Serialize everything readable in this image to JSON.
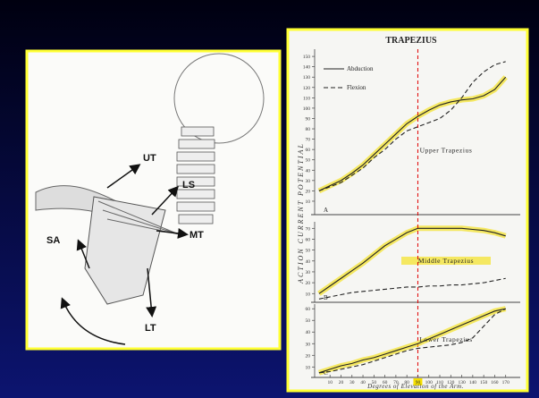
{
  "anatomy": {
    "labels": [
      "UT",
      "LS",
      "MT",
      "SA",
      "LT"
    ]
  },
  "chart_data": [
    {
      "type": "line",
      "title": "TRAPEZIUS",
      "ylabel": "ACTION CURRENT POTENTIAL",
      "panel": "A",
      "annotation": "Upper Trapezius",
      "x": [
        0,
        10,
        20,
        30,
        40,
        50,
        60,
        70,
        80,
        90,
        100,
        110,
        120,
        130,
        140,
        150,
        160,
        170
      ],
      "series": [
        {
          "name": "Abduction",
          "color": "#222222",
          "style": "solid",
          "values": [
            20,
            25,
            30,
            37,
            45,
            55,
            65,
            75,
            85,
            92,
            98,
            103,
            106,
            108,
            109,
            112,
            118,
            130
          ]
        },
        {
          "name": "Flexion",
          "color": "#222222",
          "style": "dashed",
          "values": [
            20,
            24,
            28,
            35,
            42,
            52,
            60,
            70,
            78,
            82,
            86,
            90,
            98,
            110,
            125,
            135,
            142,
            145
          ]
        }
      ],
      "xlim": [
        -4,
        180
      ],
      "ylim": [
        -3,
        157
      ],
      "yticks": [
        10,
        20,
        30,
        40,
        50,
        60,
        70,
        80,
        90,
        100,
        110,
        120,
        130,
        140,
        150
      ],
      "legend": "top-left"
    },
    {
      "type": "line",
      "panel": "B",
      "annotation": "Middle Trapezius",
      "x": [
        0,
        10,
        20,
        30,
        40,
        50,
        60,
        70,
        80,
        90,
        100,
        110,
        120,
        130,
        140,
        150,
        160,
        170
      ],
      "series": [
        {
          "color": "#222222",
          "style": "solid",
          "values": [
            10,
            17,
            24,
            31,
            38,
            46,
            54,
            60,
            66,
            70,
            70,
            70,
            70,
            70,
            69,
            68,
            66,
            63
          ]
        },
        {
          "color": "#222222",
          "style": "dashed",
          "values": [
            5,
            7,
            9,
            11,
            12,
            13,
            14,
            15,
            16,
            16,
            17,
            17,
            18,
            18,
            19,
            20,
            22,
            24
          ]
        }
      ],
      "xlim": [
        -4,
        180
      ],
      "ylim": [
        2,
        76
      ],
      "yticks": [
        10,
        20,
        30,
        40,
        50,
        60,
        70
      ]
    },
    {
      "type": "line",
      "panel": "C",
      "annotation": "Lower Trapezius",
      "xlabel": "Degrees of Elevation of the Arm.",
      "x": [
        0,
        10,
        20,
        30,
        40,
        50,
        60,
        70,
        80,
        90,
        100,
        110,
        120,
        130,
        140,
        150,
        160,
        170
      ],
      "series": [
        {
          "color": "#222222",
          "style": "solid",
          "values": [
            5,
            8,
            11,
            13,
            16,
            18,
            21,
            24,
            27,
            30,
            34,
            38,
            42,
            46,
            50,
            54,
            58,
            60
          ]
        },
        {
          "color": "#222222",
          "style": "dashed",
          "values": [
            5,
            6,
            8,
            10,
            12,
            15,
            18,
            21,
            24,
            26,
            27,
            28,
            29,
            31,
            35,
            45,
            55,
            60
          ]
        }
      ],
      "xlim": [
        -4,
        180
      ],
      "ylim": [
        1,
        64
      ],
      "yticks": [
        10,
        20,
        30,
        40,
        50,
        60
      ],
      "xticks": [
        10,
        20,
        30,
        40,
        50,
        60,
        70,
        80,
        90,
        100,
        110,
        120,
        130,
        140,
        150,
        160,
        170
      ],
      "highlight_xtick": 90
    }
  ]
}
